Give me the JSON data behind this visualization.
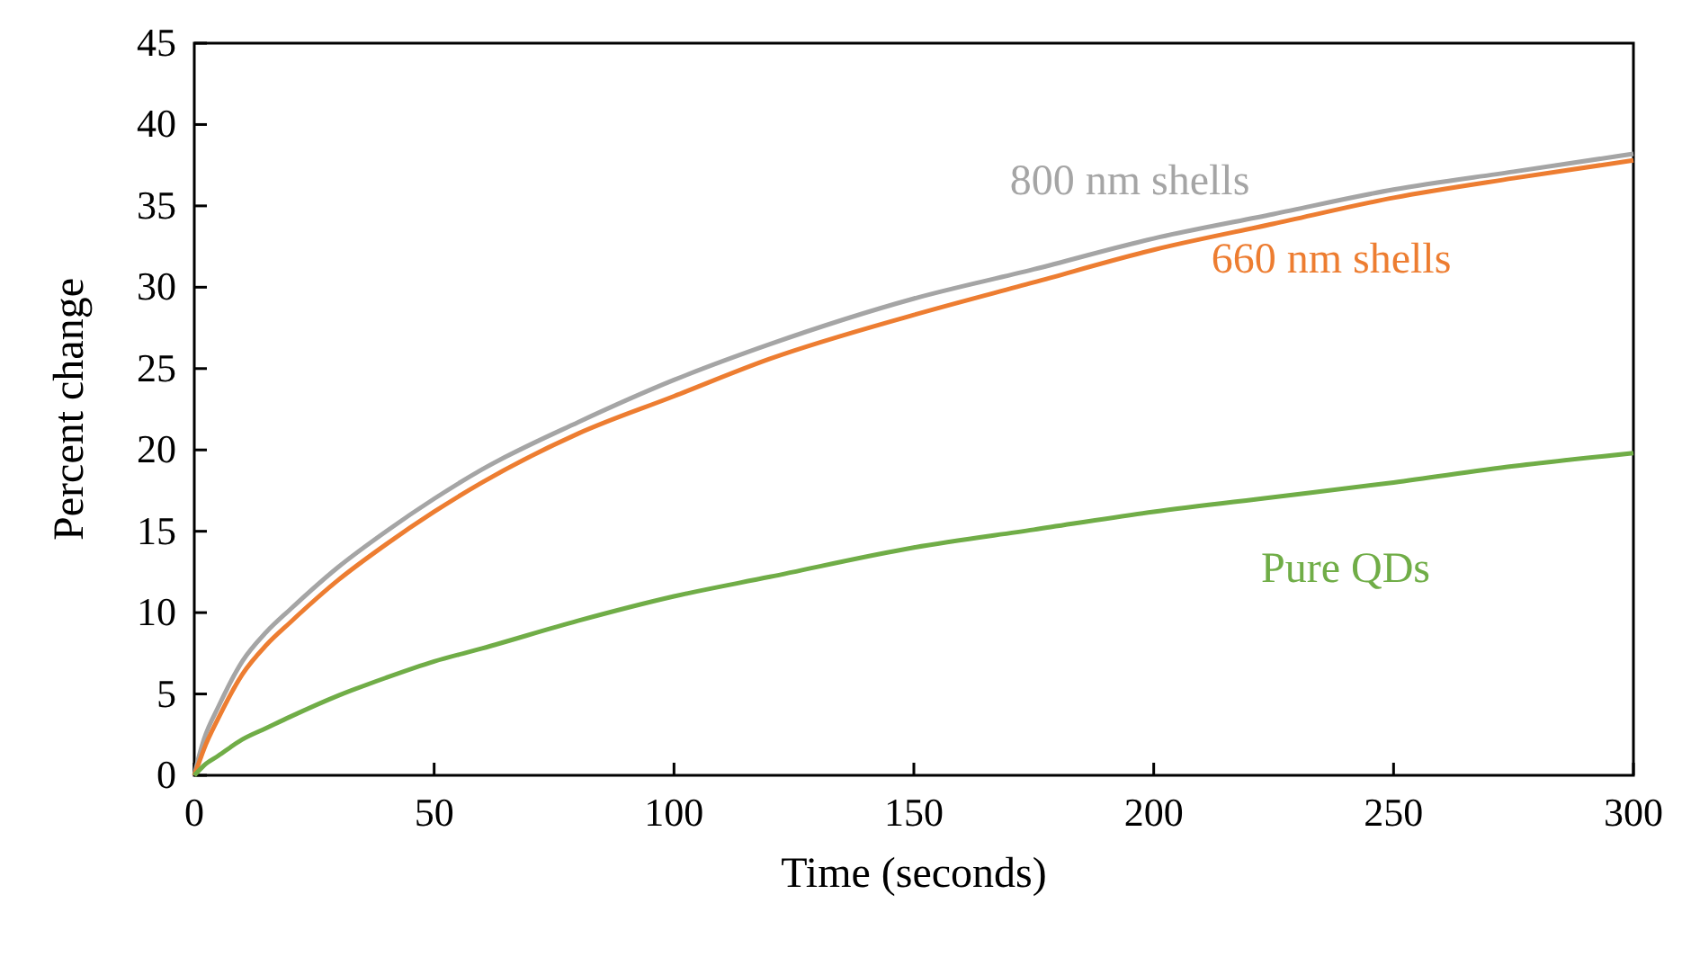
{
  "chart_data": {
    "type": "line",
    "xlabel": "Time (seconds)",
    "ylabel": "Percent change",
    "x": [
      0,
      1,
      2,
      5,
      10,
      15,
      20,
      30,
      40,
      50,
      60,
      80,
      100,
      120,
      150,
      175,
      200,
      225,
      250,
      275,
      300
    ],
    "xlim": [
      0,
      300
    ],
    "xticks": [
      0,
      50,
      100,
      150,
      200,
      250,
      300
    ],
    "ylim": [
      0,
      45
    ],
    "yticks": [
      0,
      5,
      10,
      15,
      20,
      25,
      30,
      35,
      40,
      45
    ],
    "grid": false,
    "marker": "none",
    "line_style": "solid",
    "series": [
      {
        "name": "800 nm shells",
        "color": "#a5a5a5",
        "values": [
          0,
          1.2,
          2.2,
          4.2,
          7,
          8.8,
          10.2,
          12.8,
          15,
          17,
          18.8,
          21.7,
          24.3,
          26.5,
          29.3,
          31.1,
          33,
          34.5,
          36,
          37.1,
          38.2
        ]
      },
      {
        "name": "660 nm shells",
        "color": "#ed7d31",
        "values": [
          0,
          0.8,
          1.6,
          3.5,
          6.2,
          8,
          9.4,
          12,
          14.2,
          16.2,
          18,
          21,
          23.3,
          25.6,
          28.3,
          30.3,
          32.3,
          33.9,
          35.5,
          36.7,
          37.8
        ]
      },
      {
        "name": "Pure QDs",
        "color": "#70ad47",
        "values": [
          0,
          0.3,
          0.6,
          1.2,
          2.2,
          2.9,
          3.6,
          4.9,
          6,
          7,
          7.8,
          9.5,
          11,
          12.2,
          14,
          15.1,
          16.2,
          17.1,
          18,
          19,
          19.8
        ]
      }
    ]
  }
}
